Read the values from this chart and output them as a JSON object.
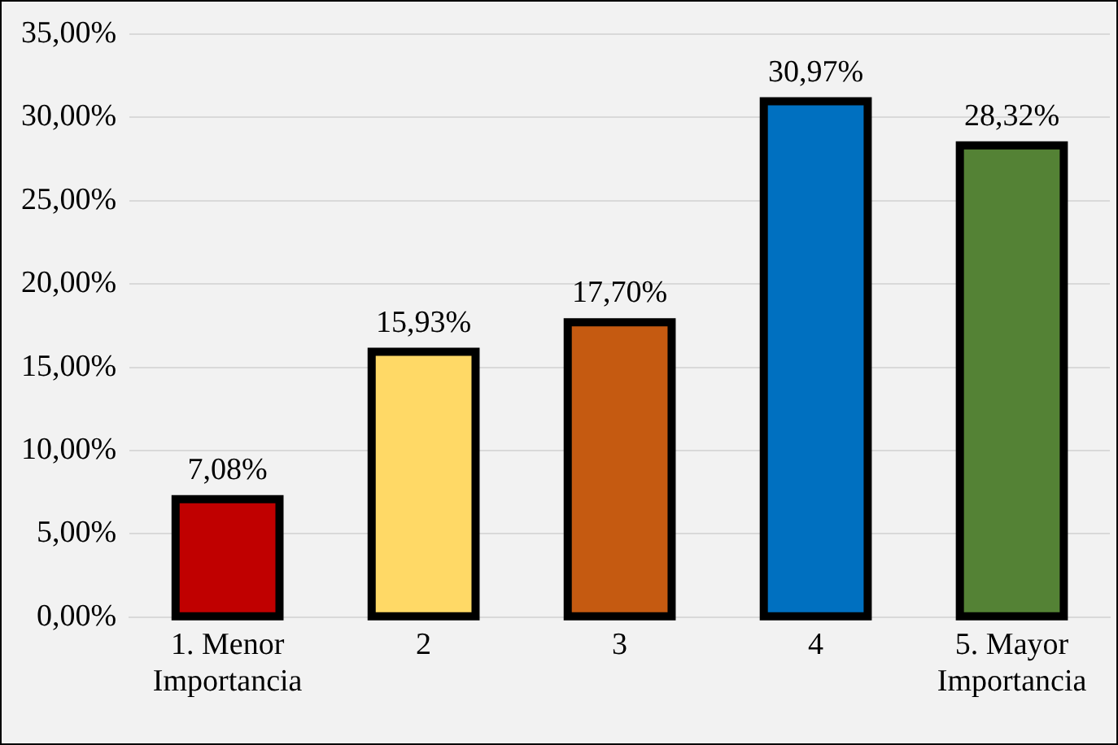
{
  "chart_data": {
    "type": "bar",
    "categories": [
      "1. Menor Importancia",
      "2",
      "3",
      "4",
      "5. Mayor Importancia"
    ],
    "values": [
      7.08,
      15.93,
      17.7,
      30.97,
      28.32
    ],
    "colors": [
      "#c00000",
      "#ffd966",
      "#c55a11",
      "#0070c0",
      "#548235"
    ],
    "value_labels": [
      "7,08%",
      "15,93%",
      "17,70%",
      "30,97%",
      "28,32%"
    ],
    "ylim": [
      0,
      35
    ],
    "yticks": [
      {
        "value": 0,
        "label": "0,00%"
      },
      {
        "value": 5,
        "label": "5,00%"
      },
      {
        "value": 10,
        "label": "10,00%"
      },
      {
        "value": 15,
        "label": "15,00%"
      },
      {
        "value": 20,
        "label": "20,00%"
      },
      {
        "value": 25,
        "label": "25,00%"
      },
      {
        "value": 30,
        "label": "30,00%"
      },
      {
        "value": 35,
        "label": "35,00%"
      }
    ],
    "grid": "y",
    "legend": false
  }
}
